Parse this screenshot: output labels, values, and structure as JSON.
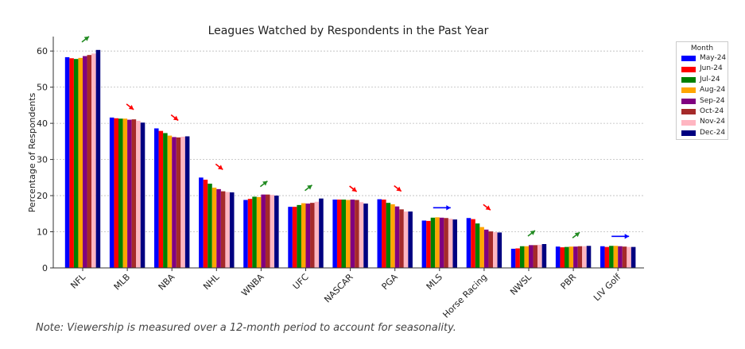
{
  "chart_data": {
    "type": "bar",
    "title": "Leagues Watched by Respondents in the Past Year",
    "xlabel": "",
    "ylabel": "Percentage of Respondents",
    "ylim": [
      0,
      64
    ],
    "yticks": [
      "0",
      "10",
      "20",
      "30",
      "40",
      "50",
      "60"
    ],
    "grid": true,
    "legend_placement": "right",
    "legend_title": "Month",
    "categories": [
      "NFL",
      "MLB",
      "NBA",
      "NHL",
      "WNBA",
      "UFC",
      "NASCAR",
      "PGA",
      "MLS",
      "Horse Racing",
      "NWSL",
      "PBR",
      "LIV Golf"
    ],
    "series": [
      {
        "name": "May-24",
        "color": "#0000ff",
        "values": [
          58.3,
          41.6,
          38.6,
          25.0,
          18.8,
          16.9,
          18.9,
          19.0,
          13.1,
          13.8,
          5.3,
          5.9,
          6.0
        ]
      },
      {
        "name": "Jun-24",
        "color": "#ff0000",
        "values": [
          58.0,
          41.4,
          37.9,
          24.4,
          19.1,
          16.9,
          18.9,
          18.9,
          13.0,
          13.5,
          5.4,
          5.7,
          5.8
        ]
      },
      {
        "name": "Jul-24",
        "color": "#008000",
        "values": [
          57.8,
          41.3,
          37.3,
          23.3,
          19.7,
          17.4,
          18.9,
          18.0,
          13.9,
          12.3,
          6.0,
          5.8,
          6.1
        ]
      },
      {
        "name": "Aug-24",
        "color": "#ffa500",
        "values": [
          58.1,
          41.3,
          36.6,
          22.2,
          19.6,
          17.9,
          18.8,
          17.6,
          14.0,
          11.3,
          6.0,
          5.9,
          6.1
        ]
      },
      {
        "name": "Sep-24",
        "color": "#800080",
        "values": [
          58.6,
          41.0,
          36.2,
          21.8,
          20.3,
          17.8,
          18.9,
          17.0,
          13.9,
          10.6,
          6.3,
          5.9,
          6.0
        ]
      },
      {
        "name": "Oct-24",
        "color": "#a52a2a",
        "values": [
          58.9,
          41.1,
          36.1,
          21.2,
          20.3,
          18.0,
          18.8,
          16.2,
          13.8,
          10.1,
          6.3,
          6.0,
          5.9
        ]
      },
      {
        "name": "Nov-24",
        "color": "#ffb6c1",
        "values": [
          59.3,
          40.7,
          36.3,
          21.0,
          20.2,
          18.3,
          18.2,
          15.6,
          13.6,
          9.9,
          6.4,
          6.0,
          5.8
        ]
      },
      {
        "name": "Dec-24",
        "color": "#000080",
        "values": [
          60.3,
          40.2,
          36.4,
          20.9,
          20.0,
          19.2,
          17.8,
          15.6,
          13.4,
          9.8,
          6.6,
          6.1,
          5.8
        ]
      }
    ],
    "trend_arrows": [
      {
        "category": "NFL",
        "direction": "up",
        "color": "#228B22"
      },
      {
        "category": "MLB",
        "direction": "down",
        "color": "#ff0000"
      },
      {
        "category": "NBA",
        "direction": "down",
        "color": "#ff0000"
      },
      {
        "category": "NHL",
        "direction": "down",
        "color": "#ff0000"
      },
      {
        "category": "WNBA",
        "direction": "up",
        "color": "#228B22"
      },
      {
        "category": "UFC",
        "direction": "up",
        "color": "#228B22"
      },
      {
        "category": "NASCAR",
        "direction": "down",
        "color": "#ff0000"
      },
      {
        "category": "PGA",
        "direction": "down",
        "color": "#ff0000"
      },
      {
        "category": "MLS",
        "direction": "flat",
        "color": "#0000ff"
      },
      {
        "category": "Horse Racing",
        "direction": "down",
        "color": "#ff0000"
      },
      {
        "category": "NWSL",
        "direction": "up",
        "color": "#228B22"
      },
      {
        "category": "PBR",
        "direction": "up",
        "color": "#228B22"
      },
      {
        "category": "LIV Golf",
        "direction": "flat",
        "color": "#0000ff"
      }
    ]
  },
  "note": "Note: Viewership is measured over a 12-month period to account for seasonality."
}
